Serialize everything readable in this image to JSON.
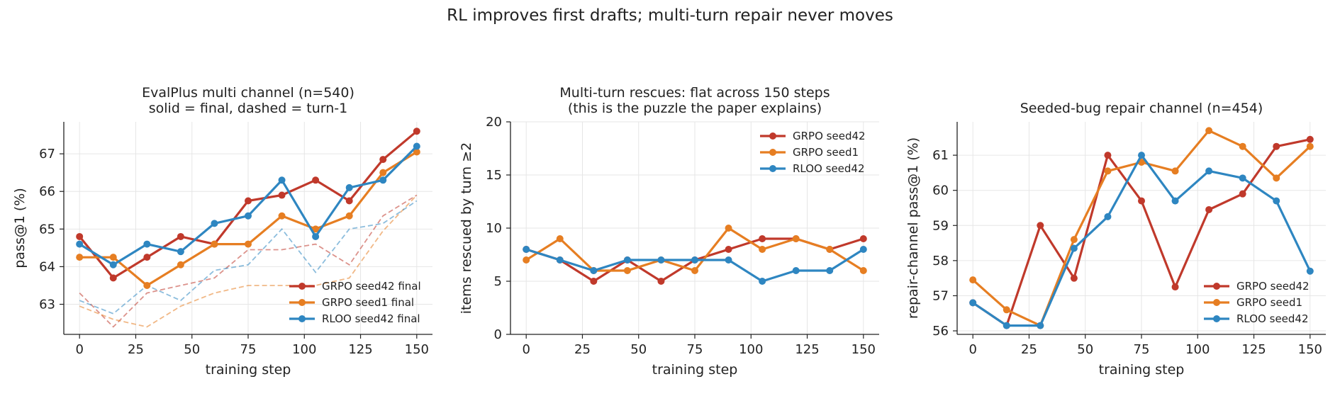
{
  "figure": {
    "suptitle": "RL improves first drafts; multi-turn repair never moves",
    "colors": {
      "grpo_seed42": "#c0392b",
      "grpo_seed1": "#e67e22",
      "rloo_seed42": "#2e86c1"
    }
  },
  "chart_data": [
    {
      "type": "line",
      "title": [
        "EvalPlus multi channel (n=540)",
        "solid = final, dashed = turn-1"
      ],
      "xlabel": "training step",
      "ylabel": "pass@1 (%)",
      "x": [
        0,
        15,
        30,
        45,
        60,
        75,
        90,
        105,
        120,
        135,
        150
      ],
      "xlim": [
        -7,
        157
      ],
      "ylim": [
        62.2,
        67.85
      ],
      "xticks": [
        0,
        25,
        50,
        75,
        100,
        125,
        150
      ],
      "yticks": [
        63,
        64,
        65,
        66,
        67
      ],
      "grid": true,
      "legend_position": "lower-right",
      "series": [
        {
          "name": "GRPO seed42 final",
          "color": "#c0392b",
          "style": "solid",
          "markers": true,
          "values": [
            64.8,
            63.7,
            64.25,
            64.8,
            64.6,
            65.75,
            65.9,
            66.3,
            65.75,
            66.85,
            67.6
          ]
        },
        {
          "name": "GRPO seed1 final",
          "color": "#e67e22",
          "style": "solid",
          "markers": true,
          "values": [
            64.25,
            64.25,
            63.5,
            64.05,
            64.6,
            64.6,
            65.35,
            65.0,
            65.35,
            66.5,
            67.05
          ]
        },
        {
          "name": "RLOO seed42 final",
          "color": "#2e86c1",
          "style": "solid",
          "markers": true,
          "values": [
            64.6,
            64.05,
            64.6,
            64.4,
            65.15,
            65.35,
            66.3,
            64.8,
            66.1,
            66.3,
            67.2
          ]
        },
        {
          "name": "",
          "color": "#c0392b",
          "style": "dashed",
          "markers": false,
          "values": [
            63.3,
            62.4,
            63.3,
            63.5,
            63.7,
            64.45,
            64.45,
            64.6,
            64.05,
            65.35,
            65.9
          ]
        },
        {
          "name": "",
          "color": "#e67e22",
          "style": "dashed",
          "markers": false,
          "values": [
            62.95,
            62.6,
            62.4,
            62.95,
            63.3,
            63.5,
            63.5,
            63.5,
            63.7,
            64.95,
            65.9
          ]
        },
        {
          "name": "",
          "color": "#2e86c1",
          "style": "dashed",
          "markers": false,
          "values": [
            63.1,
            62.75,
            63.5,
            63.1,
            63.9,
            64.05,
            65.0,
            63.85,
            65.0,
            65.15,
            65.75
          ]
        }
      ]
    },
    {
      "type": "line",
      "title": [
        "Multi-turn rescues: flat across 150 steps",
        "(this is the puzzle the paper explains)"
      ],
      "xlabel": "training step",
      "ylabel": "items rescued by turn ≥2",
      "x": [
        0,
        15,
        30,
        45,
        60,
        75,
        90,
        105,
        120,
        135,
        150
      ],
      "xlim": [
        -7,
        157
      ],
      "ylim": [
        0,
        20
      ],
      "xticks": [
        0,
        25,
        50,
        75,
        100,
        125,
        150
      ],
      "yticks": [
        0,
        5,
        10,
        15,
        20
      ],
      "grid": true,
      "legend_position": "upper-right",
      "series": [
        {
          "name": "GRPO seed42",
          "color": "#c0392b",
          "style": "solid",
          "markers": true,
          "values": [
            8,
            7,
            5,
            7,
            5,
            7,
            8,
            9,
            9,
            8,
            9
          ]
        },
        {
          "name": "GRPO seed1",
          "color": "#e67e22",
          "style": "solid",
          "markers": true,
          "values": [
            7,
            9,
            6,
            6,
            7,
            6,
            10,
            8,
            9,
            8,
            6
          ]
        },
        {
          "name": "RLOO seed42",
          "color": "#2e86c1",
          "style": "solid",
          "markers": true,
          "values": [
            8,
            7,
            6,
            7,
            7,
            7,
            7,
            5,
            6,
            6,
            8
          ]
        }
      ]
    },
    {
      "type": "line",
      "title": [
        "Seeded-bug repair channel (n=454)"
      ],
      "xlabel": "training step",
      "ylabel": "repair-channel pass@1 (%)",
      "x": [
        0,
        15,
        30,
        45,
        60,
        75,
        90,
        105,
        120,
        135,
        150
      ],
      "xlim": [
        -7,
        157
      ],
      "ylim": [
        55.9,
        61.95
      ],
      "xticks": [
        0,
        25,
        50,
        75,
        100,
        125,
        150
      ],
      "yticks": [
        56,
        57,
        58,
        59,
        60,
        61
      ],
      "grid": true,
      "legend_position": "lower-right",
      "series": [
        {
          "name": "GRPO seed42",
          "color": "#c0392b",
          "style": "solid",
          "markers": true,
          "values": [
            56.8,
            56.15,
            59.0,
            57.5,
            61.0,
            59.7,
            57.25,
            59.45,
            59.9,
            61.25,
            61.45
          ]
        },
        {
          "name": "GRPO seed1",
          "color": "#e67e22",
          "style": "solid",
          "markers": true,
          "values": [
            57.45,
            56.6,
            56.15,
            58.6,
            60.55,
            60.8,
            60.55,
            61.7,
            61.25,
            60.35,
            61.25
          ]
        },
        {
          "name": "RLOO seed42",
          "color": "#2e86c1",
          "style": "solid",
          "markers": true,
          "values": [
            56.8,
            56.15,
            56.15,
            58.35,
            59.25,
            61.0,
            59.7,
            60.55,
            60.35,
            59.7,
            57.7
          ]
        }
      ]
    }
  ]
}
